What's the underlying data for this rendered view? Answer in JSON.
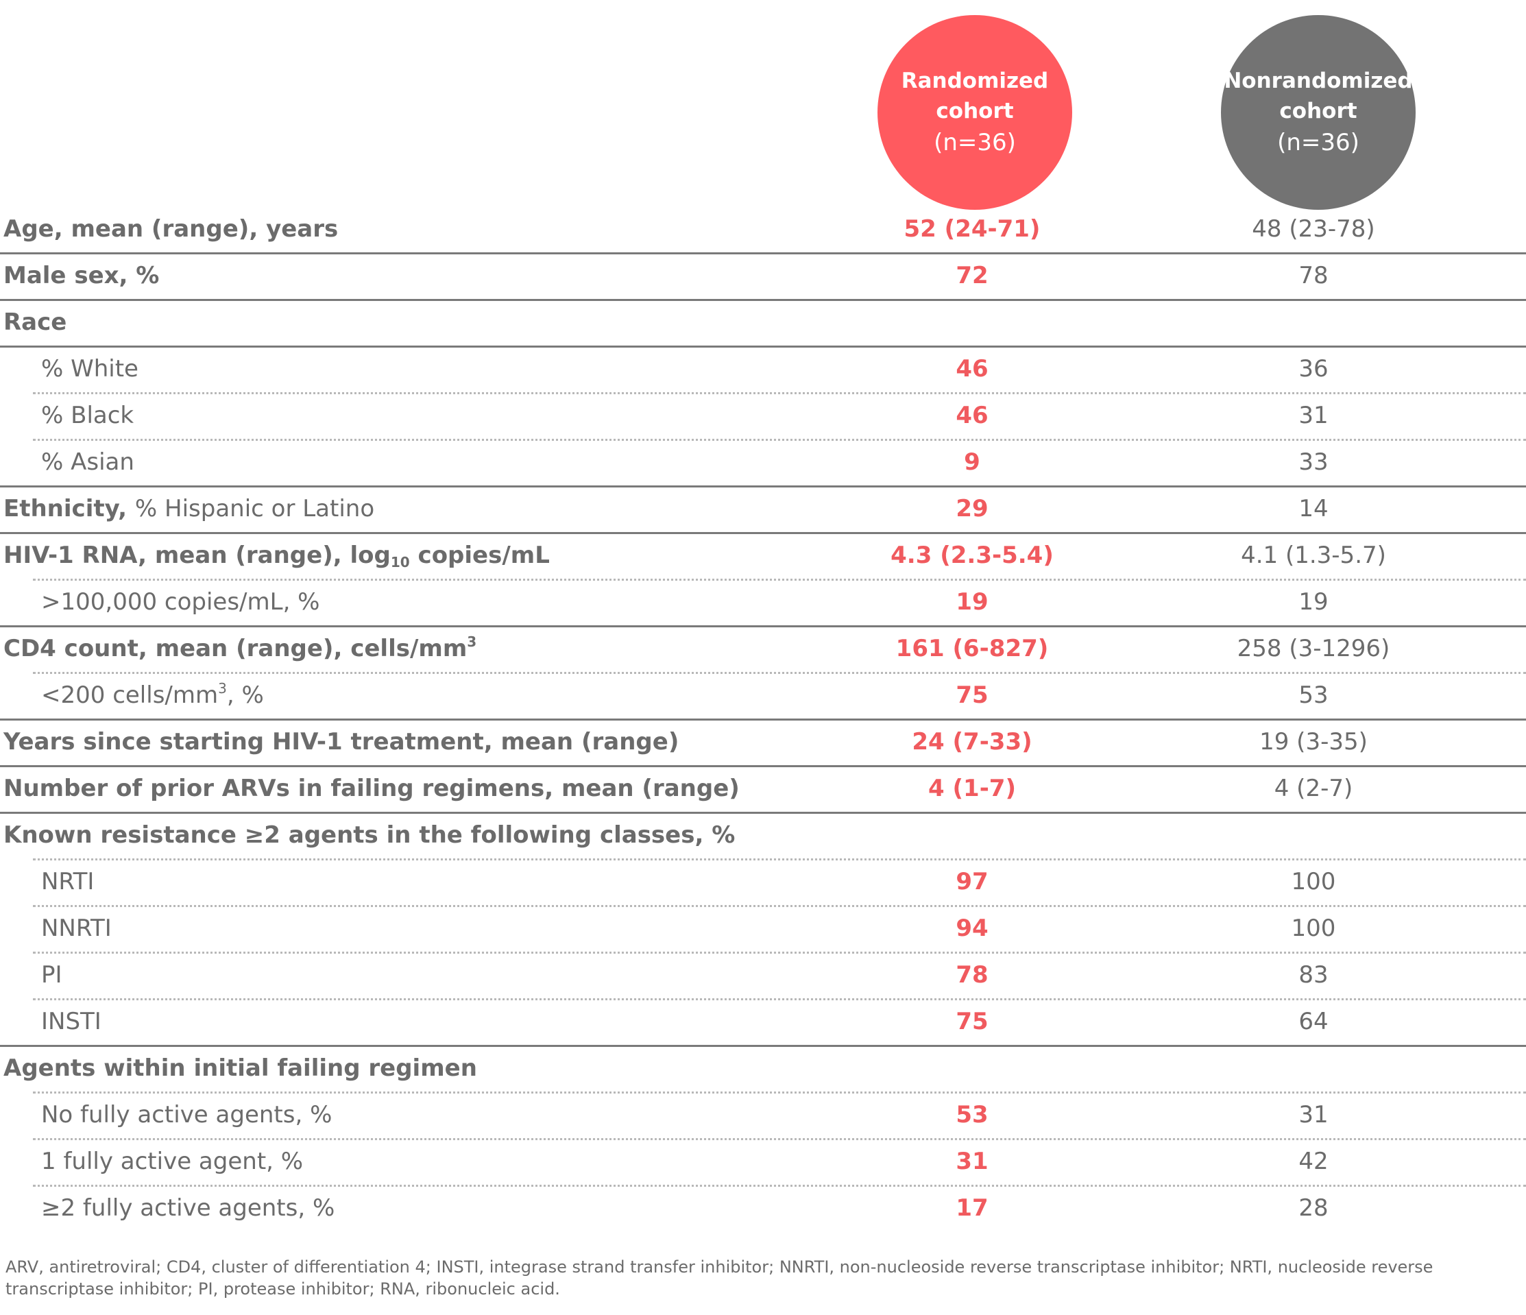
{
  "header": {
    "randomized": {
      "line1": "Randomized",
      "line2": "cohort",
      "line3": "(n=36)"
    },
    "nonrandomized": {
      "line1": "Nonrandomized",
      "line2": "cohort",
      "line3": "(n=36)"
    }
  },
  "rows": {
    "age": {
      "label": "Age, mean (range), years",
      "randomized": "52 (24-71)",
      "nonrandomized": "48 (23-78)"
    },
    "male_sex": {
      "label": "Male sex, %",
      "randomized": "72",
      "nonrandomized": "78"
    },
    "race": {
      "label": "Race"
    },
    "white": {
      "label": "% White",
      "randomized": "46",
      "nonrandomized": "36"
    },
    "black": {
      "label": "% Black",
      "randomized": "46",
      "nonrandomized": "31"
    },
    "asian": {
      "label": "% Asian",
      "randomized": "9",
      "nonrandomized": "33"
    },
    "ethnicity": {
      "label_bold": "Ethnicity,",
      "label_rest": "% Hispanic or Latino",
      "randomized": "29",
      "nonrandomized": "14"
    },
    "hiv_rna": {
      "label_pre": "HIV-1 RNA, mean (range), log",
      "label_sub": "10",
      "label_post": " copies/mL",
      "randomized": "4.3 (2.3-5.4)",
      "nonrandomized": "4.1 (1.3-5.7)"
    },
    "gt_100000": {
      "label": ">100,000 copies/mL, %",
      "randomized": "19",
      "nonrandomized": "19"
    },
    "cd4": {
      "label_pre": "CD4 count, mean (range), cells/mm",
      "label_sup": "3",
      "randomized": "161 (6-827)",
      "nonrandomized": "258 (3-1296)"
    },
    "lt_200": {
      "label_pre": "<200 cells/mm",
      "label_sup": "3",
      "label_post": ", %",
      "randomized": "75",
      "nonrandomized": "53"
    },
    "years_treatment": {
      "label": "Years since starting HIV-1 treatment, mean (range)",
      "randomized": "24 (7-33)",
      "nonrandomized": "19 (3-35)"
    },
    "prior_arvs": {
      "label": "Number of prior ARVs in failing regimens, mean (range)",
      "randomized": "4 (1-7)",
      "nonrandomized": "4 (2-7)"
    },
    "known_resistance": {
      "label": "Known resistance ≥2 agents in the following classes, %"
    },
    "nrti": {
      "label": "NRTI",
      "randomized": "97",
      "nonrandomized": "100"
    },
    "nnrti": {
      "label": "NNRTI",
      "randomized": "94",
      "nonrandomized": "100"
    },
    "pi": {
      "label": "PI",
      "randomized": "78",
      "nonrandomized": "83"
    },
    "insti": {
      "label": "INSTI",
      "randomized": "75",
      "nonrandomized": "64"
    },
    "agents_initial": {
      "label": "Agents within initial failing regimen"
    },
    "no_active": {
      "label": "No fully active agents, %",
      "randomized": "53",
      "nonrandomized": "31"
    },
    "one_active": {
      "label": "1 fully active agent, %",
      "randomized": "31",
      "nonrandomized": "42"
    },
    "two_active": {
      "label": "≥2 fully active agents, %",
      "randomized": "17",
      "nonrandomized": "28"
    }
  },
  "footnote": "ARV, antiretroviral; CD4, cluster of differentiation 4; INSTI, integrase strand transfer inhibitor; NNRTI, non-nucleoside reverse transcriptase inhibitor; NRTI, nucleoside reverse transcriptase inhibitor; PI, protease inhibitor; RNA, ribonucleic acid.",
  "colors": {
    "randomized_accent": "#ff5a5f",
    "nonrandomized_accent": "#737373",
    "text": "#6b6b6b"
  }
}
